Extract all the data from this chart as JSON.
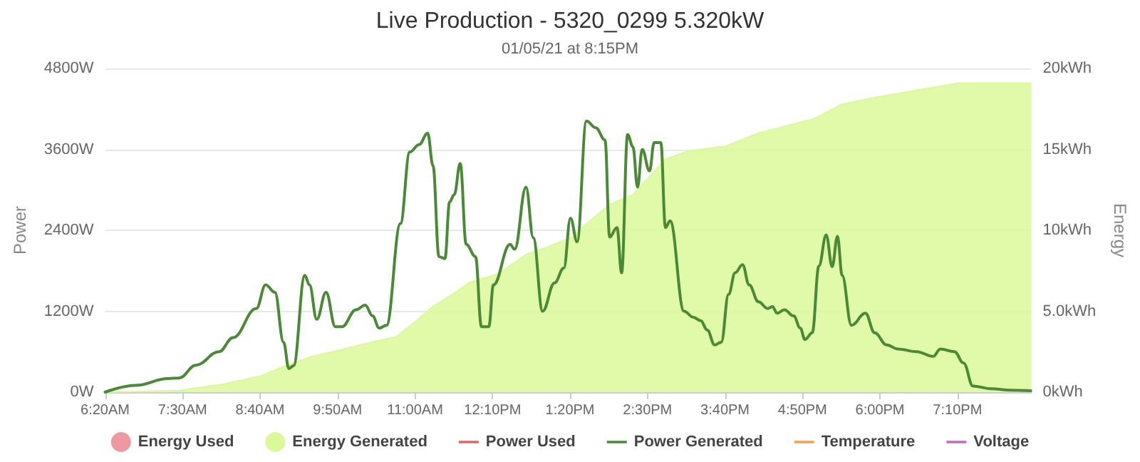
{
  "chart_data": {
    "type": "line",
    "title": "Live Production - 5320_0299 5.320kW",
    "subtitle": "01/05/21 at 8:15PM",
    "ylabel": "Power",
    "y2label": "Energy",
    "xlim": [
      6.3333,
      20.28
    ],
    "xticks": [
      {
        "value": 6.3333,
        "label": "6:20AM"
      },
      {
        "value": 7.5,
        "label": "7:30AM"
      },
      {
        "value": 8.6667,
        "label": "8:40AM"
      },
      {
        "value": 9.8333,
        "label": "9:50AM"
      },
      {
        "value": 11,
        "label": "11:00AM"
      },
      {
        "value": 12.1667,
        "label": "12:10PM"
      },
      {
        "value": 13.3333,
        "label": "1:20PM"
      },
      {
        "value": 14.5,
        "label": "2:30PM"
      },
      {
        "value": 15.6667,
        "label": "3:40PM"
      },
      {
        "value": 16.8333,
        "label": "4:50PM"
      },
      {
        "value": 18,
        "label": "6:00PM"
      },
      {
        "value": 19.1667,
        "label": "7:10PM"
      }
    ],
    "ylim": [
      0,
      4800
    ],
    "yticks": [
      {
        "value": 0,
        "label": "0W"
      },
      {
        "value": 1200,
        "label": "1200W"
      },
      {
        "value": 2400,
        "label": "2400W"
      },
      {
        "value": 3600,
        "label": "3600W"
      },
      {
        "value": 4800,
        "label": "4800W"
      }
    ],
    "y2lim": [
      0,
      20
    ],
    "y2ticks": [
      {
        "value": 0,
        "label": "0kWh"
      },
      {
        "value": 5,
        "label": "5.0kWh"
      },
      {
        "value": 10,
        "label": "10kWh"
      },
      {
        "value": 15,
        "label": "15kWh"
      },
      {
        "value": 20,
        "label": "20kWh"
      }
    ],
    "grid": "y",
    "legend": "bottom",
    "marker": "none",
    "line_style": "solid",
    "series": [
      {
        "name": "Energy Used",
        "type": "area",
        "axis": "y2",
        "color": "#ec9aa0"
      },
      {
        "name": "Energy Generated",
        "type": "area",
        "axis": "y2",
        "color": "#dcf99a",
        "x": [
          6.3333,
          7.45,
          8.12,
          8.68,
          9.03,
          9.45,
          9.87,
          10.36,
          10.71,
          10.99,
          11.27,
          11.55,
          11.83,
          12.25,
          12.67,
          13.02,
          13.37,
          13.58,
          13.93,
          14.28,
          14.77,
          15.12,
          15.68,
          16.17,
          17.01,
          17.43,
          17.92,
          18.62,
          19.19,
          20.28
        ],
        "values": [
          0,
          0.1,
          0.5,
          1,
          1.6,
          2.2,
          2.6,
          3.1,
          3.4,
          4.3,
          5.3,
          6,
          6.8,
          7.3,
          8.5,
          9,
          9.6,
          10.4,
          11.6,
          12.2,
          14.4,
          14.9,
          15.2,
          16,
          16.9,
          17.8,
          18.2,
          18.7,
          19.1,
          19.1
        ]
      },
      {
        "name": "Power Used",
        "type": "line",
        "color": "#e06666"
      },
      {
        "name": "Power Generated",
        "color": "#4a8a36",
        "x": [
          6.3333,
          6.79,
          7.28,
          7.45,
          7.7,
          8.05,
          8.26,
          8.61,
          8.75,
          8.89,
          9.02,
          9.1,
          9.17,
          9.34,
          9.41,
          9.52,
          9.66,
          9.8,
          9.9,
          10.11,
          10.25,
          10.36,
          10.46,
          10.57,
          10.78,
          10.92,
          11.06,
          11.19,
          11.27,
          11.36,
          11.45,
          11.52,
          11.59,
          11.68,
          11.77,
          11.91,
          12,
          12.11,
          12.18,
          12.43,
          12.5,
          12.67,
          12.78,
          12.92,
          13.1,
          13.24,
          13.34,
          13.44,
          13.58,
          13.72,
          13.86,
          13.93,
          14.04,
          14.11,
          14.2,
          14.28,
          14.35,
          14.42,
          14.53,
          14.6,
          14.7,
          14.77,
          14.84,
          15.05,
          15.19,
          15.3,
          15.4,
          15.51,
          15.61,
          15.72,
          15.82,
          15.93,
          16.03,
          16.17,
          16.31,
          16.38,
          16.45,
          16.56,
          16.7,
          16.8,
          16.87,
          16.98,
          17.08,
          17.19,
          17.28,
          17.36,
          17.43,
          17.57,
          17.78,
          17.92,
          18.1,
          18.27,
          18.55,
          18.8,
          18.91,
          19.12,
          19.26,
          19.4,
          19.68,
          19.96,
          20.27
        ],
        "values": [
          0,
          100,
          200,
          210,
          400,
          600,
          810,
          1240,
          1590,
          1480,
          740,
          350,
          390,
          1730,
          1590,
          1080,
          1480,
          970,
          970,
          1220,
          1290,
          1130,
          950,
          990,
          2500,
          3560,
          3670,
          3840,
          3360,
          2010,
          1980,
          2820,
          2930,
          3390,
          2190,
          2010,
          970,
          970,
          1590,
          2190,
          2120,
          3040,
          2290,
          1200,
          1620,
          1840,
          2580,
          2230,
          4020,
          3920,
          3740,
          2300,
          2440,
          1770,
          3820,
          3640,
          3040,
          3600,
          3280,
          3700,
          3700,
          2440,
          2540,
          1200,
          1110,
          1060,
          920,
          700,
          740,
          1450,
          1770,
          1890,
          1590,
          1340,
          1240,
          1270,
          1170,
          1220,
          1130,
          950,
          780,
          880,
          1870,
          2330,
          1860,
          2310,
          1730,
          990,
          1170,
          880,
          700,
          640,
          600,
          530,
          640,
          600,
          430,
          90,
          50,
          30,
          20
        ]
      },
      {
        "name": "Temperature",
        "type": "line",
        "color": "#f0a050"
      },
      {
        "name": "Voltage",
        "type": "line",
        "color": "#c868b8"
      }
    ]
  }
}
